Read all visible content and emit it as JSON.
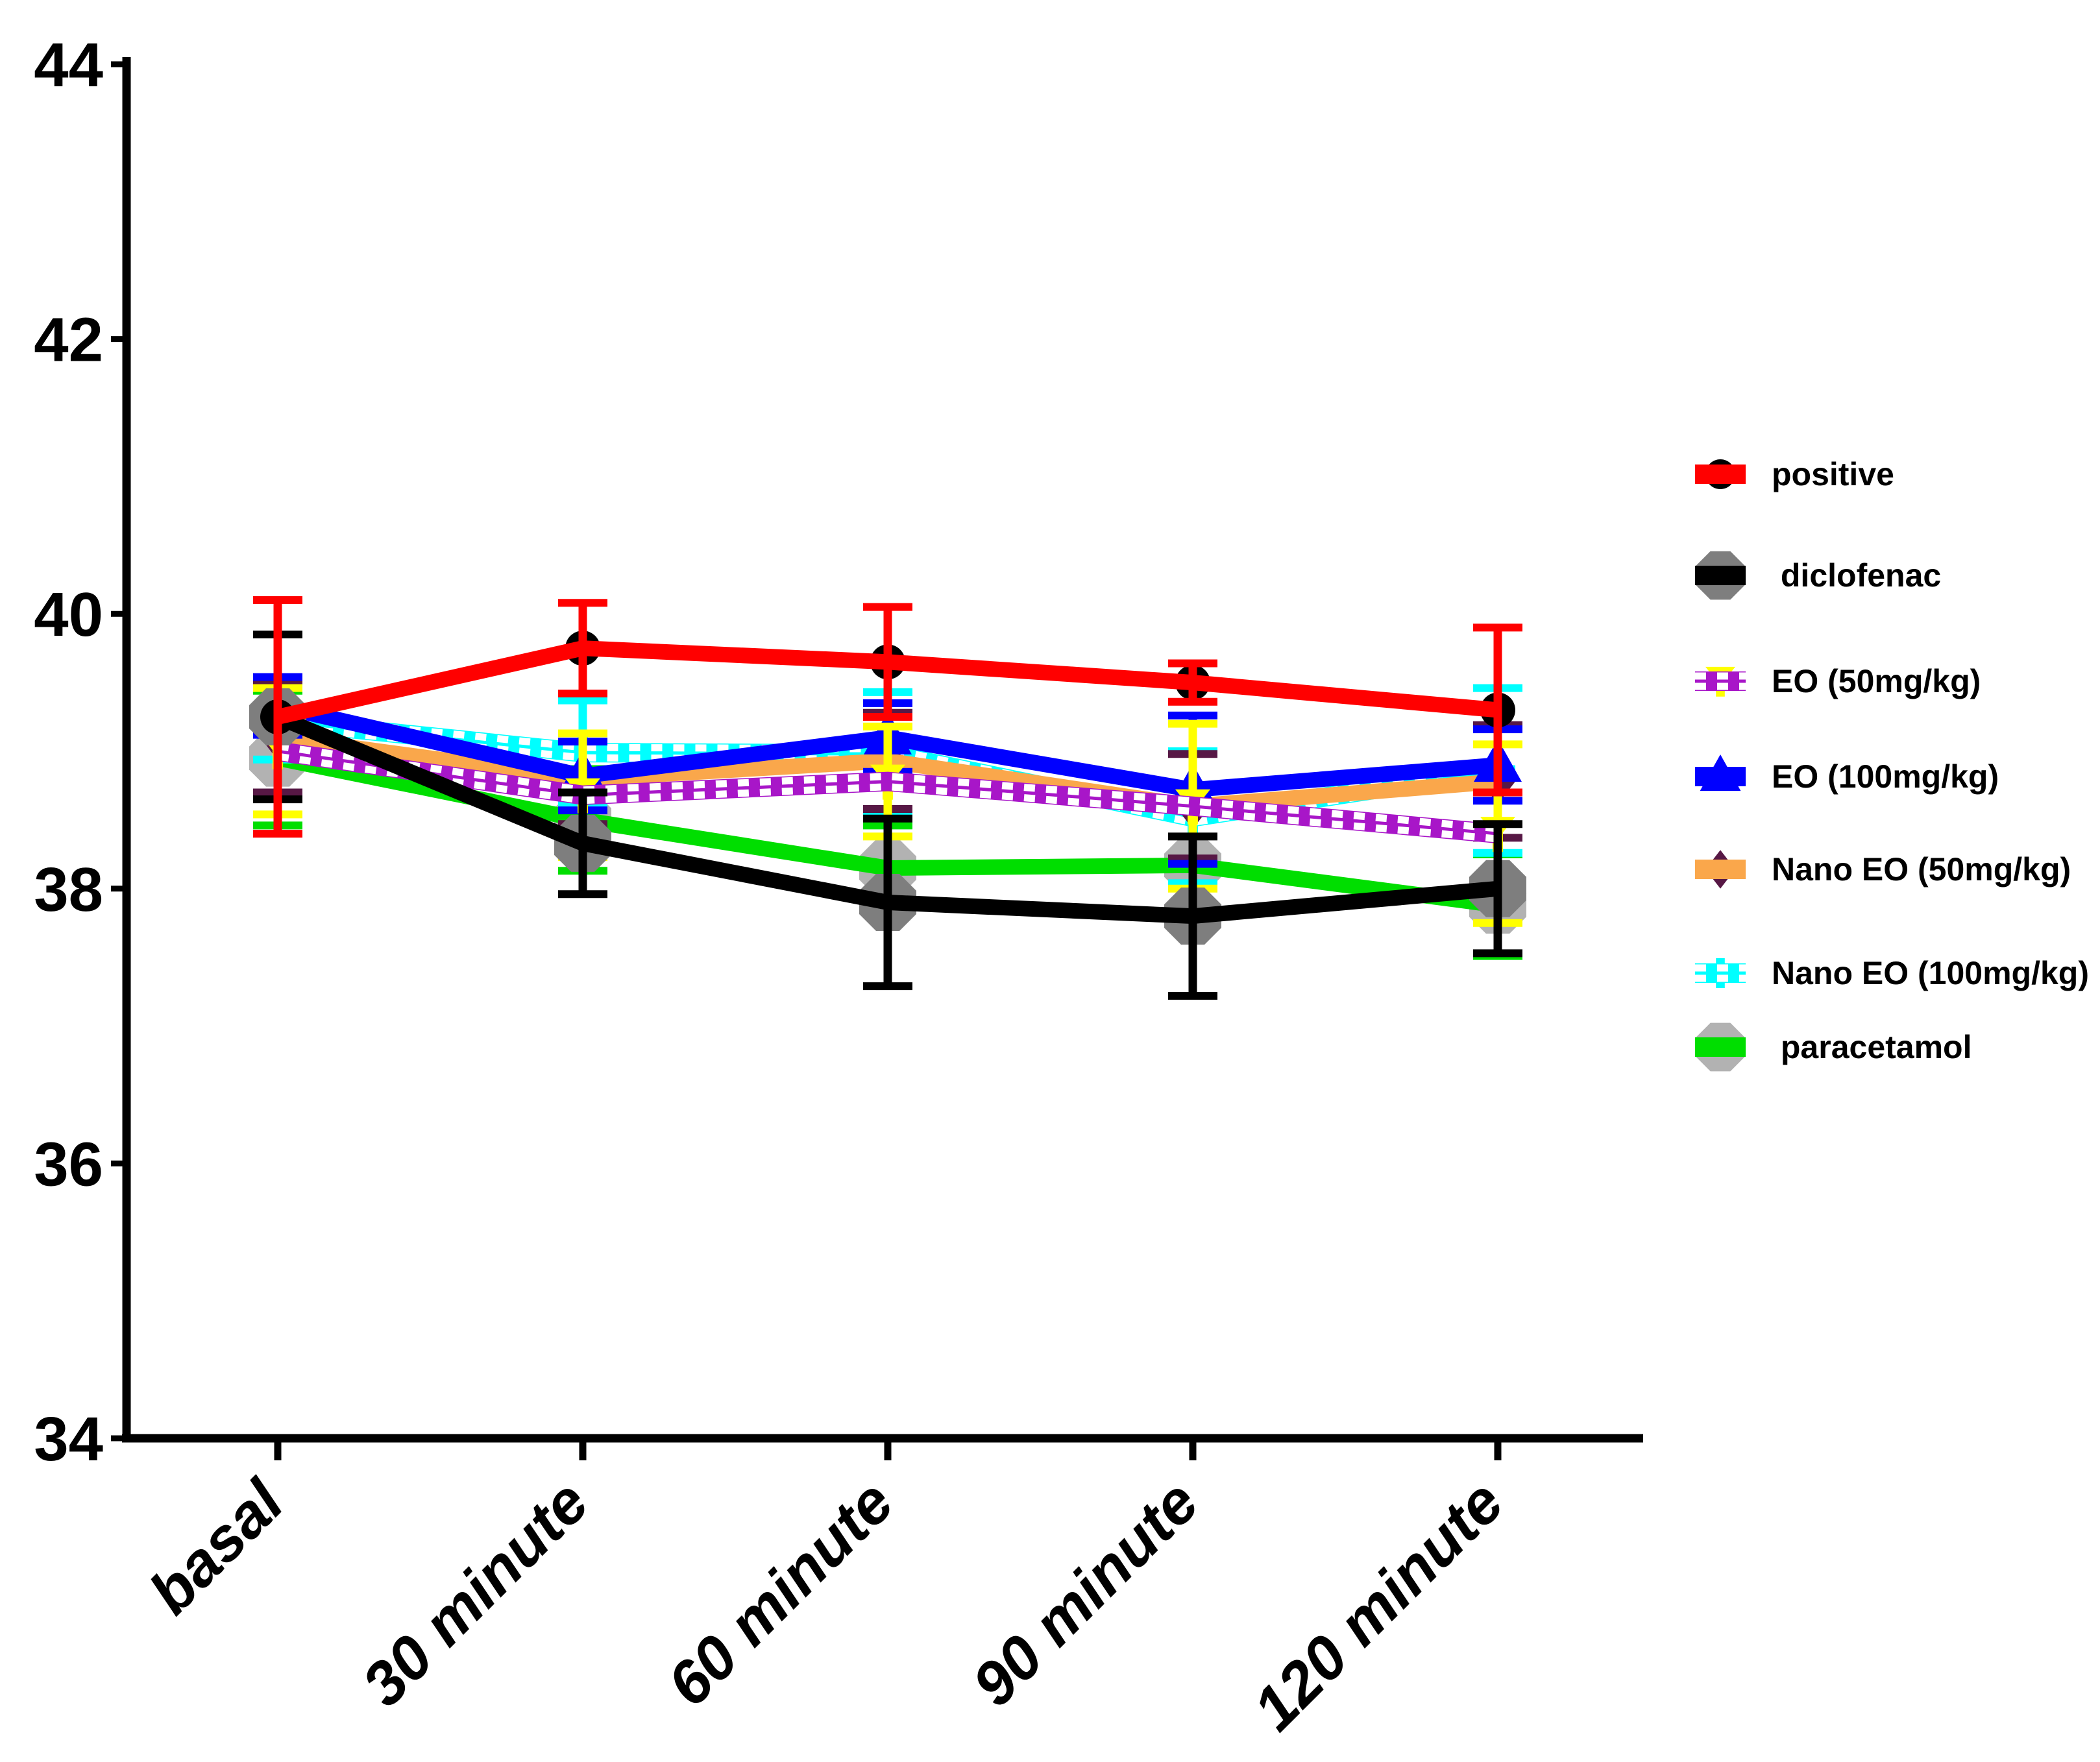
{
  "chart_data": {
    "type": "line",
    "title": "",
    "xlabel": "",
    "ylabel": "",
    "categories": [
      "basal",
      "30 minute",
      "60 minute",
      "90 minute",
      "120 minute"
    ],
    "ylim": [
      34,
      44
    ],
    "yticks": [
      34,
      36,
      38,
      40,
      42,
      44
    ],
    "grid": false,
    "legend_position": "right",
    "background": "#FFFFFF",
    "axis_color": "#000000",
    "series": [
      {
        "name": "positive",
        "line_color": "#FF0000",
        "line_style": "solid",
        "marker": "circle",
        "marker_color": "#000000",
        "error_color": "#FF0000",
        "values": [
          39.25,
          39.75,
          39.65,
          39.5,
          39.3
        ],
        "errors": [
          0.85,
          0.33,
          0.4,
          0.14,
          0.6
        ]
      },
      {
        "name": " diclofenac",
        "line_color": "#000000",
        "line_style": "solid",
        "marker": "octagon",
        "marker_color": "#7E7E7E",
        "error_color": "#000000",
        "values": [
          39.25,
          38.33,
          37.9,
          37.8,
          38.0
        ],
        "errors": [
          0.6,
          0.37,
          0.61,
          0.58,
          0.47
        ]
      },
      {
        "name": "EO (50mg/kg)",
        "line_color": "#A816C8",
        "line_style": "checkered",
        "marker": "funnel",
        "marker_color": "#FFFF00",
        "error_color": "#FFFF00",
        "values": [
          39.0,
          38.68,
          38.78,
          38.6,
          38.4
        ],
        "errors": [
          0.46,
          0.45,
          0.4,
          0.6,
          0.65
        ]
      },
      {
        "name": "EO (100mg/kg)",
        "line_color": "#0000FF",
        "line_style": "solid",
        "marker": "triangle-up",
        "marker_color": "#0000FF",
        "error_color": "#0000FF",
        "values": [
          39.33,
          38.82,
          39.1,
          38.72,
          38.9
        ],
        "errors": [
          0.21,
          0.25,
          0.25,
          0.54,
          0.26
        ]
      },
      {
        "name": "Nano EO (50mg/kg)",
        "line_color": "#FAA74B",
        "line_style": "solid",
        "marker": "diamond",
        "marker_color": "#571845",
        "error_color": "#571845",
        "values": [
          39.1,
          38.8,
          38.93,
          38.6,
          38.78
        ],
        "errors": [
          0.4,
          0.33,
          0.35,
          0.38,
          0.41
        ]
      },
      {
        "name": "Nano EO (100mg/kg)",
        "line_color": "#00FFFF",
        "line_style": "checkered",
        "marker": "cross",
        "marker_color": "#00FFFF",
        "error_color": "#00FFFF",
        "values": [
          39.22,
          38.99,
          38.98,
          38.52,
          38.86
        ],
        "errors": [
          0.28,
          0.38,
          0.45,
          0.48,
          0.6
        ]
      },
      {
        "name": " paracetamol",
        "line_color": "#00DE00",
        "line_style": "solid",
        "marker": "octagon",
        "marker_color": "#B2B2B2",
        "error_color": "#00DE00",
        "values": [
          38.95,
          38.5,
          38.15,
          38.17,
          37.88
        ],
        "errors": [
          0.49,
          0.37,
          0.31,
          0.41,
          0.37
        ]
      }
    ]
  }
}
